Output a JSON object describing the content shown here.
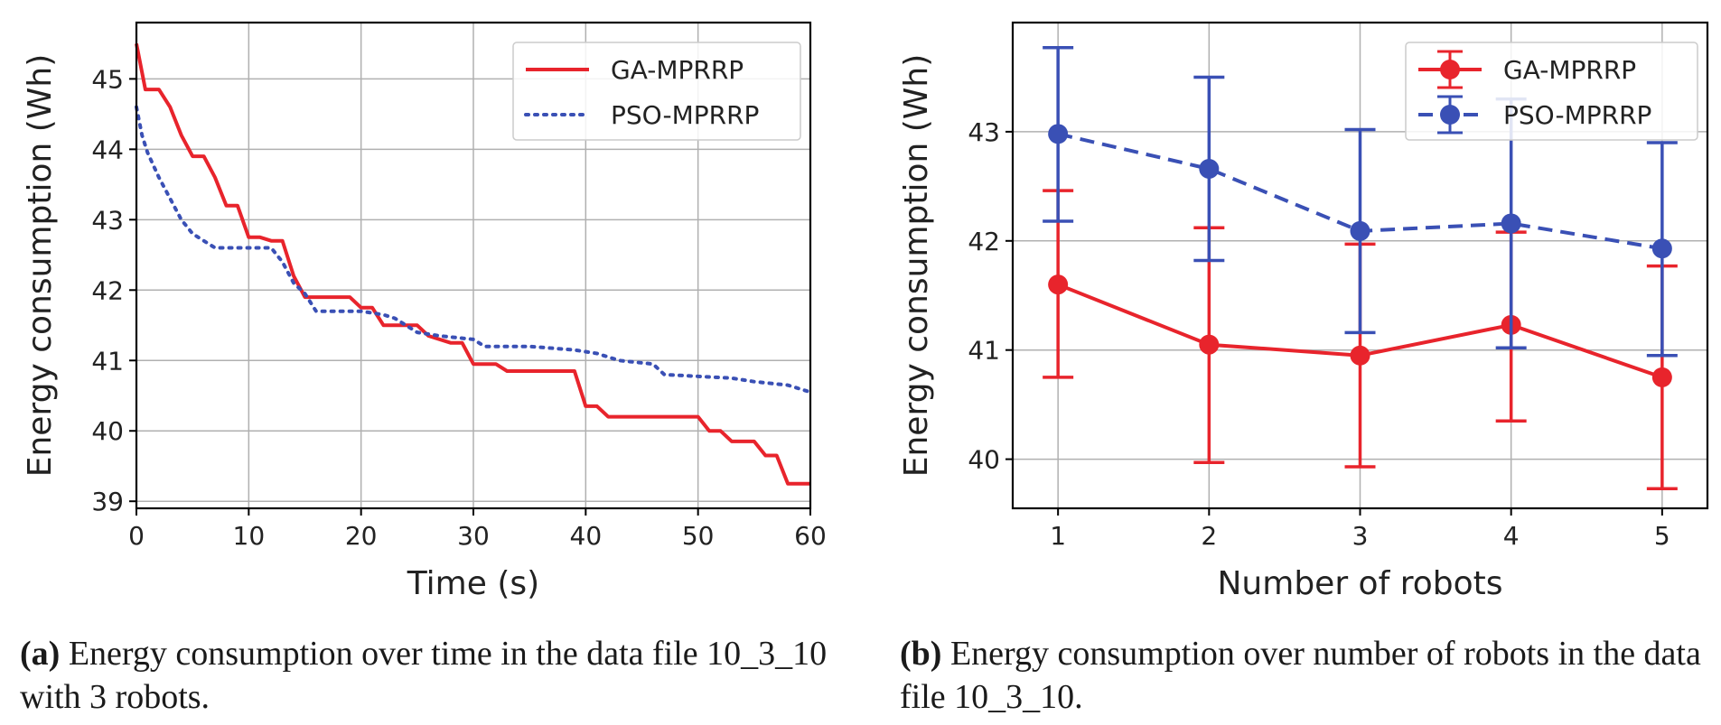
{
  "chart_data": [
    {
      "type": "line",
      "panel": "a",
      "title": "",
      "xlabel": "Time (s)",
      "ylabel": "Energy consumption (Wh)",
      "xlim": [
        0,
        60
      ],
      "ylim": [
        38.9,
        45.8
      ],
      "xticks": [
        0,
        10,
        20,
        30,
        40,
        50,
        60
      ],
      "yticks": [
        39,
        40,
        41,
        42,
        43,
        44,
        45
      ],
      "grid": true,
      "legend_position": "top-right",
      "series": [
        {
          "name": "GA-MPRRP",
          "color": "#e8242c",
          "style": "solid",
          "x": [
            0,
            0.8,
            2,
            3,
            4,
            5,
            6,
            7,
            8,
            9,
            10,
            11,
            12,
            13,
            14,
            15,
            19,
            20,
            21,
            22,
            25,
            26,
            28,
            29,
            30,
            32,
            33,
            36,
            39,
            40,
            41,
            42,
            50,
            51,
            52,
            53,
            55,
            56,
            57,
            58,
            60
          ],
          "y": [
            45.5,
            44.85,
            44.85,
            44.6,
            44.2,
            43.9,
            43.9,
            43.6,
            43.2,
            43.2,
            42.75,
            42.75,
            42.7,
            42.7,
            42.2,
            41.9,
            41.9,
            41.75,
            41.75,
            41.5,
            41.5,
            41.35,
            41.25,
            41.25,
            40.95,
            40.95,
            40.85,
            40.85,
            40.85,
            40.35,
            40.35,
            40.2,
            40.2,
            40.0,
            40.0,
            39.85,
            39.85,
            39.65,
            39.65,
            39.25,
            39.25
          ]
        },
        {
          "name": "PSO-MPRRP",
          "color": "#3a50b5",
          "style": "dotted",
          "x": [
            0,
            0.5,
            1,
            2,
            3,
            4,
            5,
            6,
            7,
            8,
            9,
            10,
            11,
            12,
            13,
            14,
            15,
            16,
            20,
            22,
            23,
            25,
            27,
            30,
            31,
            35,
            39,
            41,
            43,
            46,
            47,
            53,
            55,
            58,
            60
          ],
          "y": [
            44.6,
            44.2,
            43.95,
            43.6,
            43.3,
            43.0,
            42.8,
            42.7,
            42.6,
            42.6,
            42.6,
            42.6,
            42.6,
            42.6,
            42.4,
            42.1,
            41.95,
            41.7,
            41.7,
            41.65,
            41.6,
            41.4,
            41.35,
            41.3,
            41.2,
            41.2,
            41.15,
            41.1,
            41.0,
            40.95,
            40.8,
            40.75,
            40.7,
            40.65,
            40.55
          ]
        }
      ]
    },
    {
      "type": "line",
      "panel": "b",
      "title": "",
      "xlabel": "Number of robots",
      "ylabel": "Energy consumption (Wh)",
      "xlim": [
        0.7,
        5.3
      ],
      "ylim": [
        39.55,
        44.0
      ],
      "xticks": [
        1,
        2,
        3,
        4,
        5
      ],
      "yticks": [
        40,
        41,
        42,
        43
      ],
      "grid": true,
      "legend_position": "top-right",
      "error_bars": true,
      "series": [
        {
          "name": "GA-MPRRP",
          "color": "#e8242c",
          "style": "solid",
          "x": [
            1,
            2,
            3,
            4,
            5
          ],
          "y": [
            41.6,
            41.05,
            40.95,
            41.23,
            40.75
          ],
          "err_low": [
            40.75,
            39.97,
            39.93,
            40.35,
            39.73
          ],
          "err_high": [
            42.46,
            42.12,
            41.97,
            42.08,
            41.77
          ]
        },
        {
          "name": "PSO-MPRRP",
          "color": "#3a50b5",
          "style": "dashed",
          "x": [
            1,
            2,
            3,
            4,
            5
          ],
          "y": [
            42.98,
            42.66,
            42.09,
            42.16,
            41.93
          ],
          "err_low": [
            42.18,
            41.82,
            41.16,
            41.02,
            40.95
          ],
          "err_high": [
            43.77,
            43.5,
            43.02,
            43.3,
            42.9
          ]
        }
      ]
    }
  ],
  "captions": {
    "a": {
      "label": "(a)",
      "text": " Energy consumption over time in the data file 10_3_10 with 3 robots."
    },
    "b": {
      "label": "(b)",
      "text": " Energy consumption over number of robots in the data file 10_3_10."
    }
  }
}
